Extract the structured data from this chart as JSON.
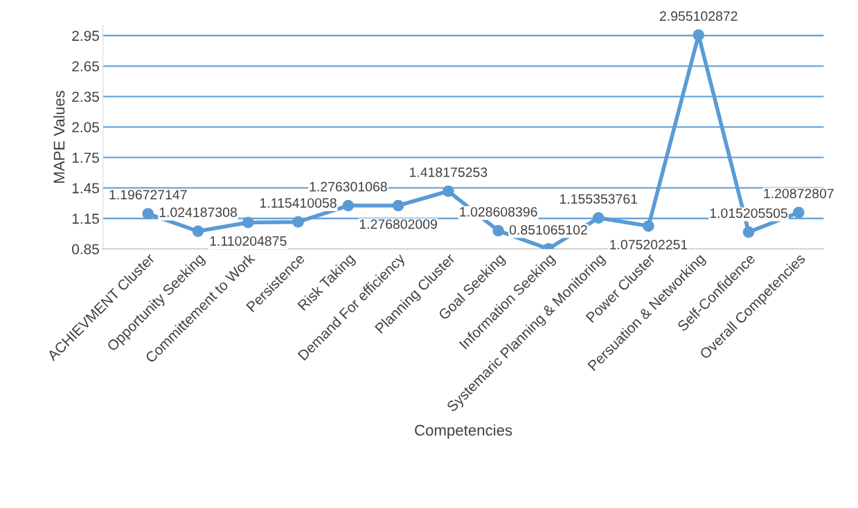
{
  "chart_data": {
    "type": "line",
    "xlabel": "Competencies",
    "ylabel": "MAPE Values",
    "categories": [
      "ACHIEVMENT Cluster",
      "Opportunity Seeking",
      "Committement to Work",
      "Persistence",
      "Risk Taking",
      "Demand For efficiency",
      "Planning Cluster",
      "Goal Seeking",
      "Information Seeking",
      "Systemaric Planning & Monitoring",
      "Power Cluster",
      "Persuation & Networking",
      "Self-Confidence",
      "Overall Competencies"
    ],
    "series": [
      {
        "color": "#5b9bd5",
        "values": [
          1.196727147,
          1.024187308,
          1.110204875,
          1.115410058,
          1.276301068,
          1.276802009,
          1.418175253,
          1.028608396,
          0.851065102,
          1.155353761,
          1.075202251,
          2.955102872,
          1.015205505,
          1.20872807
        ],
        "value_labels": [
          "1.196727147",
          "1.024187308",
          "1.110204875",
          "1.115410058",
          "1.276301068",
          "1.276802009",
          "1.418175253",
          "1.028608396",
          "0.851065102",
          "1.155353761",
          "1.075202251",
          "2.955102872",
          "1.015205505",
          "1.20872807"
        ]
      }
    ],
    "ylim": [
      0.85,
      3.05
    ],
    "yticks": [
      {
        "value": 0.85,
        "label": "0.85"
      },
      {
        "value": 1.15,
        "label": "1.15"
      },
      {
        "value": 1.45,
        "label": "1.45"
      },
      {
        "value": 1.75,
        "label": "1.75"
      },
      {
        "value": 2.05,
        "label": "2.05"
      },
      {
        "value": 2.35,
        "label": "2.35"
      },
      {
        "value": 2.65,
        "label": "2.65"
      },
      {
        "value": 2.95,
        "label": "2.95"
      }
    ],
    "grid": "y",
    "marker": "circle",
    "line_style": "solid",
    "legend": false
  }
}
